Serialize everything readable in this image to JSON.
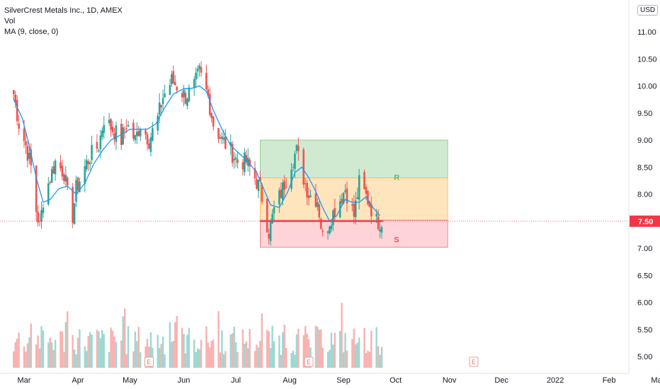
{
  "header": {
    "title": "SilverCrest Metals Inc., 1D, AMEX",
    "indicator_volume": "Vol",
    "indicator_ma": "MA (9, close, 0)",
    "currency": "USD"
  },
  "chart_data": {
    "type": "candlestick",
    "symbol": "SilverCrest Metals Inc.",
    "interval": "1D",
    "exchange": "AMEX",
    "currency": "USD",
    "ylim": [
      4.8,
      11.55
    ],
    "y_ticks": [
      "11.00",
      "10.50",
      "10.00",
      "9.50",
      "9.00",
      "8.50",
      "8.00",
      "7.50",
      "7.00",
      "6.50",
      "6.00",
      "5.50",
      "5.00"
    ],
    "x_ticks": [
      "Mar",
      "Apr",
      "May",
      "Jun",
      "Jul",
      "Aug",
      "Sep",
      "Oct",
      "Nov",
      "Dec",
      "2022",
      "Feb",
      "Mar"
    ],
    "last_price": "7.50",
    "last_price_color": "#f23645",
    "up_color": "#26a69a",
    "down_color": "#ef5350",
    "ma_color": "#2196f3",
    "close_series": [
      {
        "date": "2021-02-23",
        "close": 9.85
      },
      {
        "date": "2021-02-26",
        "close": 9.3
      },
      {
        "date": "2021-03-02",
        "close": 8.9
      },
      {
        "date": "2021-03-05",
        "close": 8.5
      },
      {
        "date": "2021-03-08",
        "close": 7.7
      },
      {
        "date": "2021-03-10",
        "close": 7.4
      },
      {
        "date": "2021-03-12",
        "close": 7.9
      },
      {
        "date": "2021-03-16",
        "close": 8.3
      },
      {
        "date": "2021-03-19",
        "close": 8.6
      },
      {
        "date": "2021-03-24",
        "close": 8.4
      },
      {
        "date": "2021-03-26",
        "close": 8.0
      },
      {
        "date": "2021-03-29",
        "close": 7.6
      },
      {
        "date": "2021-03-31",
        "close": 8.1
      },
      {
        "date": "2021-04-05",
        "close": 8.5
      },
      {
        "date": "2021-04-08",
        "close": 8.7
      },
      {
        "date": "2021-04-13",
        "close": 8.9
      },
      {
        "date": "2021-04-16",
        "close": 9.4
      },
      {
        "date": "2021-04-21",
        "close": 9.2
      },
      {
        "date": "2021-04-26",
        "close": 9.0
      },
      {
        "date": "2021-04-29",
        "close": 9.3
      },
      {
        "date": "2021-05-04",
        "close": 9.0
      },
      {
        "date": "2021-05-07",
        "close": 9.3
      },
      {
        "date": "2021-05-12",
        "close": 9.0
      },
      {
        "date": "2021-05-17",
        "close": 9.4
      },
      {
        "date": "2021-05-20",
        "close": 9.8
      },
      {
        "date": "2021-05-25",
        "close": 10.1
      },
      {
        "date": "2021-05-28",
        "close": 10.0
      },
      {
        "date": "2021-06-02",
        "close": 9.8
      },
      {
        "date": "2021-06-07",
        "close": 10.0
      },
      {
        "date": "2021-06-10",
        "close": 10.25
      },
      {
        "date": "2021-06-15",
        "close": 9.8
      },
      {
        "date": "2021-06-18",
        "close": 9.3
      },
      {
        "date": "2021-06-23",
        "close": 9.0
      },
      {
        "date": "2021-06-28",
        "close": 8.8
      },
      {
        "date": "2021-07-02",
        "close": 8.6
      },
      {
        "date": "2021-07-07",
        "close": 8.6
      },
      {
        "date": "2021-07-12",
        "close": 8.3
      },
      {
        "date": "2021-07-15",
        "close": 8.1
      },
      {
        "date": "2021-07-20",
        "close": 7.3
      },
      {
        "date": "2021-07-23",
        "close": 7.7
      },
      {
        "date": "2021-07-28",
        "close": 8.1
      },
      {
        "date": "2021-08-02",
        "close": 8.6
      },
      {
        "date": "2021-08-05",
        "close": 8.8
      },
      {
        "date": "2021-08-09",
        "close": 8.3
      },
      {
        "date": "2021-08-12",
        "close": 8.0
      },
      {
        "date": "2021-08-17",
        "close": 7.9
      },
      {
        "date": "2021-08-20",
        "close": 7.2
      },
      {
        "date": "2021-08-25",
        "close": 7.6
      },
      {
        "date": "2021-08-30",
        "close": 7.9
      },
      {
        "date": "2021-09-02",
        "close": 8.1
      },
      {
        "date": "2021-09-07",
        "close": 7.6
      },
      {
        "date": "2021-09-10",
        "close": 8.2
      },
      {
        "date": "2021-09-15",
        "close": 7.9
      },
      {
        "date": "2021-09-20",
        "close": 7.5
      },
      {
        "date": "2021-09-23",
        "close": 7.5
      }
    ],
    "ma_series": [
      {
        "date": "2021-02-23",
        "value": 9.75
      },
      {
        "date": "2021-02-28",
        "value": 9.4
      },
      {
        "date": "2021-03-04",
        "value": 8.9
      },
      {
        "date": "2021-03-08",
        "value": 8.3
      },
      {
        "date": "2021-03-12",
        "value": 7.85
      },
      {
        "date": "2021-03-16",
        "value": 7.9
      },
      {
        "date": "2021-03-21",
        "value": 8.1
      },
      {
        "date": "2021-03-26",
        "value": 8.15
      },
      {
        "date": "2021-03-31",
        "value": 8.0
      },
      {
        "date": "2021-04-05",
        "value": 8.2
      },
      {
        "date": "2021-04-10",
        "value": 8.55
      },
      {
        "date": "2021-04-15",
        "value": 8.8
      },
      {
        "date": "2021-04-20",
        "value": 9.0
      },
      {
        "date": "2021-04-26",
        "value": 9.1
      },
      {
        "date": "2021-05-01",
        "value": 9.2
      },
      {
        "date": "2021-05-06",
        "value": 9.2
      },
      {
        "date": "2021-05-11",
        "value": 9.2
      },
      {
        "date": "2021-05-16",
        "value": 9.3
      },
      {
        "date": "2021-05-21",
        "value": 9.6
      },
      {
        "date": "2021-05-26",
        "value": 9.85
      },
      {
        "date": "2021-06-01",
        "value": 9.95
      },
      {
        "date": "2021-06-05",
        "value": 9.95
      },
      {
        "date": "2021-06-10",
        "value": 10.0
      },
      {
        "date": "2021-06-14",
        "value": 9.9
      },
      {
        "date": "2021-06-18",
        "value": 9.55
      },
      {
        "date": "2021-06-23",
        "value": 9.2
      },
      {
        "date": "2021-06-28",
        "value": 8.9
      },
      {
        "date": "2021-07-03",
        "value": 8.75
      },
      {
        "date": "2021-07-08",
        "value": 8.6
      },
      {
        "date": "2021-07-13",
        "value": 8.4
      },
      {
        "date": "2021-07-17",
        "value": 8.1
      },
      {
        "date": "2021-07-21",
        "value": 7.8
      },
      {
        "date": "2021-07-26",
        "value": 7.75
      },
      {
        "date": "2021-07-31",
        "value": 8.05
      },
      {
        "date": "2021-08-04",
        "value": 8.4
      },
      {
        "date": "2021-08-08",
        "value": 8.5
      },
      {
        "date": "2021-08-12",
        "value": 8.3
      },
      {
        "date": "2021-08-16",
        "value": 8.05
      },
      {
        "date": "2021-08-20",
        "value": 7.75
      },
      {
        "date": "2021-08-24",
        "value": 7.5
      },
      {
        "date": "2021-08-28",
        "value": 7.6
      },
      {
        "date": "2021-09-02",
        "value": 7.9
      },
      {
        "date": "2021-09-06",
        "value": 7.85
      },
      {
        "date": "2021-09-10",
        "value": 7.85
      },
      {
        "date": "2021-09-14",
        "value": 7.95
      },
      {
        "date": "2021-09-18",
        "value": 7.75
      },
      {
        "date": "2021-09-22",
        "value": 7.6
      }
    ],
    "zones": [
      {
        "label": "R",
        "name": "resistance",
        "from": "2021-07-15",
        "to": "2021-10-31",
        "low": 8.3,
        "high": 9.0,
        "fill": "#c8e6c9"
      },
      {
        "label": "",
        "name": "range",
        "from": "2021-07-15",
        "to": "2021-10-31",
        "low": 7.52,
        "high": 8.3,
        "fill": "#ffe0b2"
      },
      {
        "label": "S",
        "name": "support",
        "from": "2021-07-15",
        "to": "2021-10-31",
        "low": 7.02,
        "high": 7.52,
        "fill": "#ffcdd2"
      }
    ],
    "support_line": {
      "price": 7.5,
      "from": "2021-07-15",
      "to": "2021-09-24"
    },
    "events": [
      {
        "date": "2021-05-12",
        "label": "E"
      },
      {
        "date": "2021-08-12",
        "label": "E"
      },
      {
        "date": "2021-11-15",
        "label": "E"
      }
    ],
    "grid": false
  }
}
